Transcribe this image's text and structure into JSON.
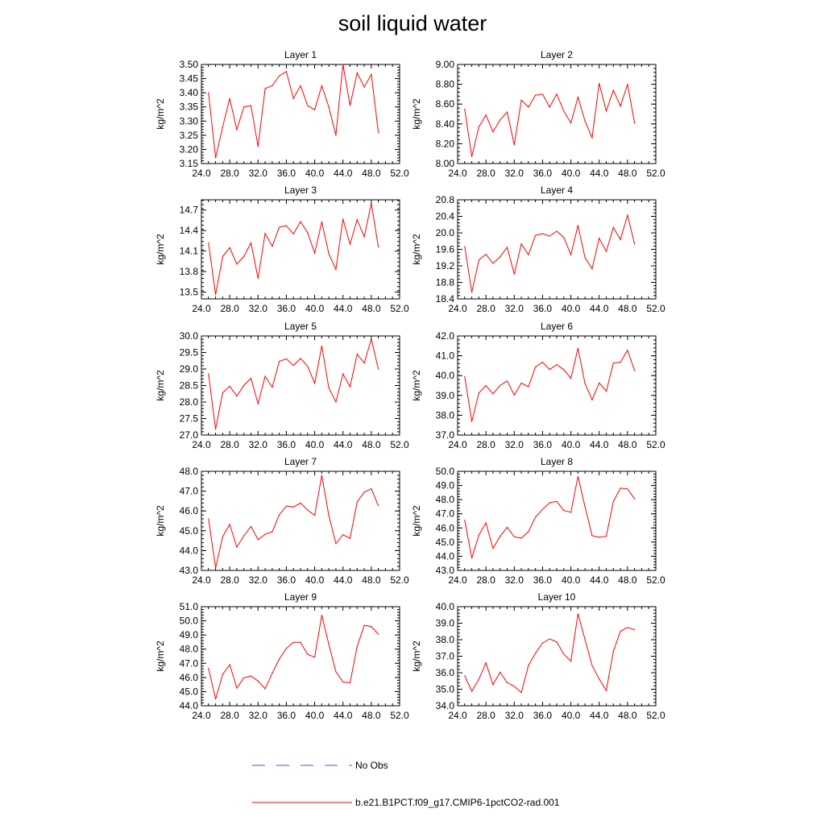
{
  "figure": {
    "title": "soil liquid water",
    "line_color": "#ff0000",
    "no_obs_color": "#5555cc"
  },
  "legend": {
    "entries": [
      {
        "label": "No Obs",
        "style": "dashed"
      },
      {
        "label": "b.e21.B1PCT.f09_g17.CMIP6-1pctCO2-rad.001",
        "style": "solid"
      }
    ]
  },
  "chart_data": [
    {
      "type": "line",
      "title": "Layer 1",
      "ylabel": "kg/m^2",
      "xlim": [
        24,
        52
      ],
      "ylim": [
        3.15,
        3.5
      ],
      "xticks": [
        "24.0",
        "28.0",
        "32.0",
        "36.0",
        "40.0",
        "44.0",
        "48.0",
        "52.0"
      ],
      "yticks": [
        "3.15",
        "3.20",
        "3.25",
        "3.30",
        "3.35",
        "3.40",
        "3.45",
        "3.50"
      ],
      "x": [
        25,
        26,
        27,
        28,
        29,
        30,
        31,
        32,
        33,
        34,
        35,
        36,
        37,
        38,
        39,
        40,
        41,
        42,
        43,
        44,
        45,
        46,
        47,
        48,
        49
      ],
      "values": [
        3.4,
        3.17,
        3.28,
        3.38,
        3.27,
        3.35,
        3.355,
        3.21,
        3.415,
        3.425,
        3.46,
        3.475,
        3.38,
        3.425,
        3.355,
        3.34,
        3.425,
        3.35,
        3.25,
        3.5,
        3.355,
        3.47,
        3.42,
        3.465,
        3.26
      ]
    },
    {
      "type": "line",
      "title": "Layer 2",
      "ylabel": "kg/m^2",
      "xlim": [
        24,
        52
      ],
      "ylim": [
        8.0,
        9.0
      ],
      "xticks": [
        "24.0",
        "28.0",
        "32.0",
        "36.0",
        "40.0",
        "44.0",
        "48.0",
        "52.0"
      ],
      "yticks": [
        "8.00",
        "8.20",
        "8.40",
        "8.60",
        "8.80",
        "9.00"
      ],
      "x": [
        25,
        26,
        27,
        28,
        29,
        30,
        31,
        32,
        33,
        34,
        35,
        36,
        37,
        38,
        39,
        40,
        41,
        42,
        43,
        44,
        45,
        46,
        47,
        48,
        49
      ],
      "values": [
        8.55,
        8.07,
        8.37,
        8.49,
        8.32,
        8.44,
        8.52,
        8.19,
        8.64,
        8.57,
        8.69,
        8.7,
        8.57,
        8.7,
        8.53,
        8.41,
        8.67,
        8.43,
        8.26,
        8.81,
        8.53,
        8.74,
        8.58,
        8.8,
        8.41
      ]
    },
    {
      "type": "line",
      "title": "Layer 3",
      "ylabel": "kg/m^2",
      "xlim": [
        24,
        52
      ],
      "ylim": [
        13.4,
        14.85
      ],
      "xticks": [
        "24.0",
        "28.0",
        "32.0",
        "36.0",
        "40.0",
        "44.0",
        "48.0",
        "52.0"
      ],
      "yticks": [
        "13.5",
        "13.8",
        "14.1",
        "14.4",
        "14.7"
      ],
      "x": [
        25,
        26,
        27,
        28,
        29,
        30,
        31,
        32,
        33,
        34,
        35,
        36,
        37,
        38,
        39,
        40,
        41,
        42,
        43,
        44,
        45,
        46,
        47,
        48,
        49
      ],
      "values": [
        14.22,
        13.46,
        14.02,
        14.15,
        13.91,
        14.02,
        14.22,
        13.7,
        14.36,
        14.17,
        14.45,
        14.47,
        14.35,
        14.53,
        14.37,
        14.07,
        14.53,
        14.06,
        13.83,
        14.57,
        14.2,
        14.56,
        14.31,
        14.8,
        14.16
      ]
    },
    {
      "type": "line",
      "title": "Layer 4",
      "ylabel": "kg/m^2",
      "xlim": [
        24,
        52
      ],
      "ylim": [
        18.4,
        20.8
      ],
      "xticks": [
        "24.0",
        "28.0",
        "32.0",
        "36.0",
        "40.0",
        "44.0",
        "48.0",
        "52.0"
      ],
      "yticks": [
        "18.4",
        "18.8",
        "19.2",
        "19.6",
        "20.0",
        "20.4",
        "20.8"
      ],
      "x": [
        25,
        26,
        27,
        28,
        29,
        30,
        31,
        32,
        33,
        34,
        35,
        36,
        37,
        38,
        39,
        40,
        41,
        42,
        43,
        44,
        45,
        46,
        47,
        48,
        49
      ],
      "values": [
        19.67,
        18.56,
        19.34,
        19.48,
        19.26,
        19.42,
        19.65,
        19.0,
        19.73,
        19.47,
        19.94,
        19.98,
        19.92,
        20.04,
        19.89,
        19.47,
        20.18,
        19.4,
        19.13,
        19.87,
        19.55,
        20.13,
        19.84,
        20.43,
        19.73
      ]
    },
    {
      "type": "line",
      "title": "Layer 5",
      "ylabel": "kg/m^2",
      "xlim": [
        24,
        52
      ],
      "ylim": [
        27.0,
        30.0
      ],
      "xticks": [
        "24.0",
        "28.0",
        "32.0",
        "36.0",
        "40.0",
        "44.0",
        "48.0",
        "52.0"
      ],
      "yticks": [
        "27.0",
        "27.5",
        "28.0",
        "28.5",
        "29.0",
        "29.5",
        "30.0"
      ],
      "x": [
        25,
        26,
        27,
        28,
        29,
        30,
        31,
        32,
        33,
        34,
        35,
        36,
        37,
        38,
        39,
        40,
        41,
        42,
        43,
        44,
        45,
        46,
        47,
        48,
        49
      ],
      "values": [
        28.85,
        27.18,
        28.28,
        28.48,
        28.18,
        28.5,
        28.72,
        27.95,
        28.78,
        28.45,
        29.23,
        29.31,
        29.11,
        29.32,
        29.08,
        28.57,
        29.7,
        28.43,
        28.0,
        28.85,
        28.46,
        29.45,
        29.18,
        29.91,
        29.0
      ]
    },
    {
      "type": "line",
      "title": "Layer 6",
      "ylabel": "kg/m^2",
      "xlim": [
        24,
        52
      ],
      "ylim": [
        37.0,
        42.0
      ],
      "xticks": [
        "24.0",
        "28.0",
        "32.0",
        "36.0",
        "40.0",
        "44.0",
        "48.0",
        "52.0"
      ],
      "yticks": [
        "37.0",
        "38.0",
        "39.0",
        "40.0",
        "41.0",
        "42.0"
      ],
      "x": [
        25,
        26,
        27,
        28,
        29,
        30,
        31,
        32,
        33,
        34,
        35,
        36,
        37,
        38,
        39,
        40,
        41,
        42,
        43,
        44,
        45,
        46,
        47,
        48,
        49
      ],
      "values": [
        39.95,
        37.68,
        39.12,
        39.5,
        39.08,
        39.5,
        39.73,
        39.02,
        39.62,
        39.44,
        40.43,
        40.68,
        40.31,
        40.55,
        40.3,
        39.86,
        41.38,
        39.6,
        38.78,
        39.63,
        39.21,
        40.63,
        40.68,
        41.28,
        40.25
      ]
    },
    {
      "type": "line",
      "title": "Layer 7",
      "ylabel": "kg/m^2",
      "xlim": [
        24,
        52
      ],
      "ylim": [
        43.0,
        48.0
      ],
      "xticks": [
        "24.0",
        "28.0",
        "32.0",
        "36.0",
        "40.0",
        "44.0",
        "48.0",
        "52.0"
      ],
      "yticks": [
        "43.0",
        "44.0",
        "45.0",
        "46.0",
        "47.0",
        "48.0"
      ],
      "x": [
        25,
        26,
        27,
        28,
        29,
        30,
        31,
        32,
        33,
        34,
        35,
        36,
        37,
        38,
        39,
        40,
        41,
        42,
        43,
        44,
        45,
        46,
        47,
        48,
        49
      ],
      "values": [
        45.6,
        43.13,
        44.7,
        45.32,
        44.18,
        44.75,
        45.22,
        44.55,
        44.82,
        44.95,
        45.8,
        46.25,
        46.2,
        46.4,
        46.05,
        45.78,
        47.8,
        45.78,
        44.35,
        44.8,
        44.62,
        46.45,
        46.95,
        47.12,
        46.26
      ]
    },
    {
      "type": "line",
      "title": "Layer 8",
      "ylabel": "kg/m^2",
      "xlim": [
        24,
        52
      ],
      "ylim": [
        43.0,
        50.0
      ],
      "xticks": [
        "24.0",
        "28.0",
        "32.0",
        "36.0",
        "40.0",
        "44.0",
        "48.0",
        "52.0"
      ],
      "yticks": [
        "43.0",
        "44.0",
        "45.0",
        "46.0",
        "47.0",
        "48.0",
        "49.0",
        "50.0"
      ],
      "x": [
        25,
        26,
        27,
        28,
        29,
        30,
        31,
        32,
        33,
        34,
        35,
        36,
        37,
        38,
        39,
        40,
        41,
        42,
        43,
        44,
        45,
        46,
        47,
        48,
        49
      ],
      "values": [
        46.55,
        43.87,
        45.5,
        46.36,
        44.56,
        45.41,
        46.05,
        45.38,
        45.28,
        45.74,
        46.76,
        47.31,
        47.78,
        47.88,
        47.23,
        47.11,
        49.64,
        47.5,
        45.46,
        45.34,
        45.41,
        47.86,
        48.81,
        48.76,
        48.06
      ]
    },
    {
      "type": "line",
      "title": "Layer 9",
      "ylabel": "kg/m^2",
      "xlim": [
        24,
        52
      ],
      "ylim": [
        44.0,
        51.0
      ],
      "xticks": [
        "24.0",
        "28.0",
        "32.0",
        "36.0",
        "40.0",
        "44.0",
        "48.0",
        "52.0"
      ],
      "yticks": [
        "44.0",
        "45.0",
        "46.0",
        "47.0",
        "48.0",
        "49.0",
        "50.0",
        "51.0"
      ],
      "x": [
        25,
        26,
        27,
        28,
        29,
        30,
        31,
        32,
        33,
        34,
        35,
        36,
        37,
        38,
        39,
        40,
        41,
        42,
        43,
        44,
        45,
        46,
        47,
        48,
        49
      ],
      "values": [
        46.65,
        44.47,
        46.22,
        46.9,
        45.25,
        45.98,
        46.1,
        45.75,
        45.2,
        46.3,
        47.3,
        48.05,
        48.48,
        48.48,
        47.62,
        47.44,
        50.4,
        48.35,
        46.4,
        45.68,
        45.62,
        48.18,
        49.68,
        49.6,
        49.06
      ]
    },
    {
      "type": "line",
      "title": "Layer 10",
      "ylabel": "kg/m^2",
      "xlim": [
        24,
        52
      ],
      "ylim": [
        34.0,
        40.0
      ],
      "xticks": [
        "24.0",
        "28.0",
        "32.0",
        "36.0",
        "40.0",
        "44.0",
        "48.0",
        "52.0"
      ],
      "yticks": [
        "34.0",
        "35.0",
        "36.0",
        "37.0",
        "38.0",
        "39.0",
        "40.0"
      ],
      "x": [
        25,
        26,
        27,
        28,
        29,
        30,
        31,
        32,
        33,
        34,
        35,
        36,
        37,
        38,
        39,
        40,
        41,
        42,
        43,
        44,
        45,
        46,
        47,
        48,
        49
      ],
      "values": [
        35.82,
        34.88,
        35.6,
        36.6,
        35.28,
        36.03,
        35.4,
        35.18,
        34.8,
        36.44,
        37.18,
        37.8,
        38.05,
        37.87,
        37.12,
        36.7,
        39.57,
        38.01,
        36.44,
        35.62,
        34.92,
        37.3,
        38.51,
        38.74,
        38.6
      ]
    }
  ]
}
